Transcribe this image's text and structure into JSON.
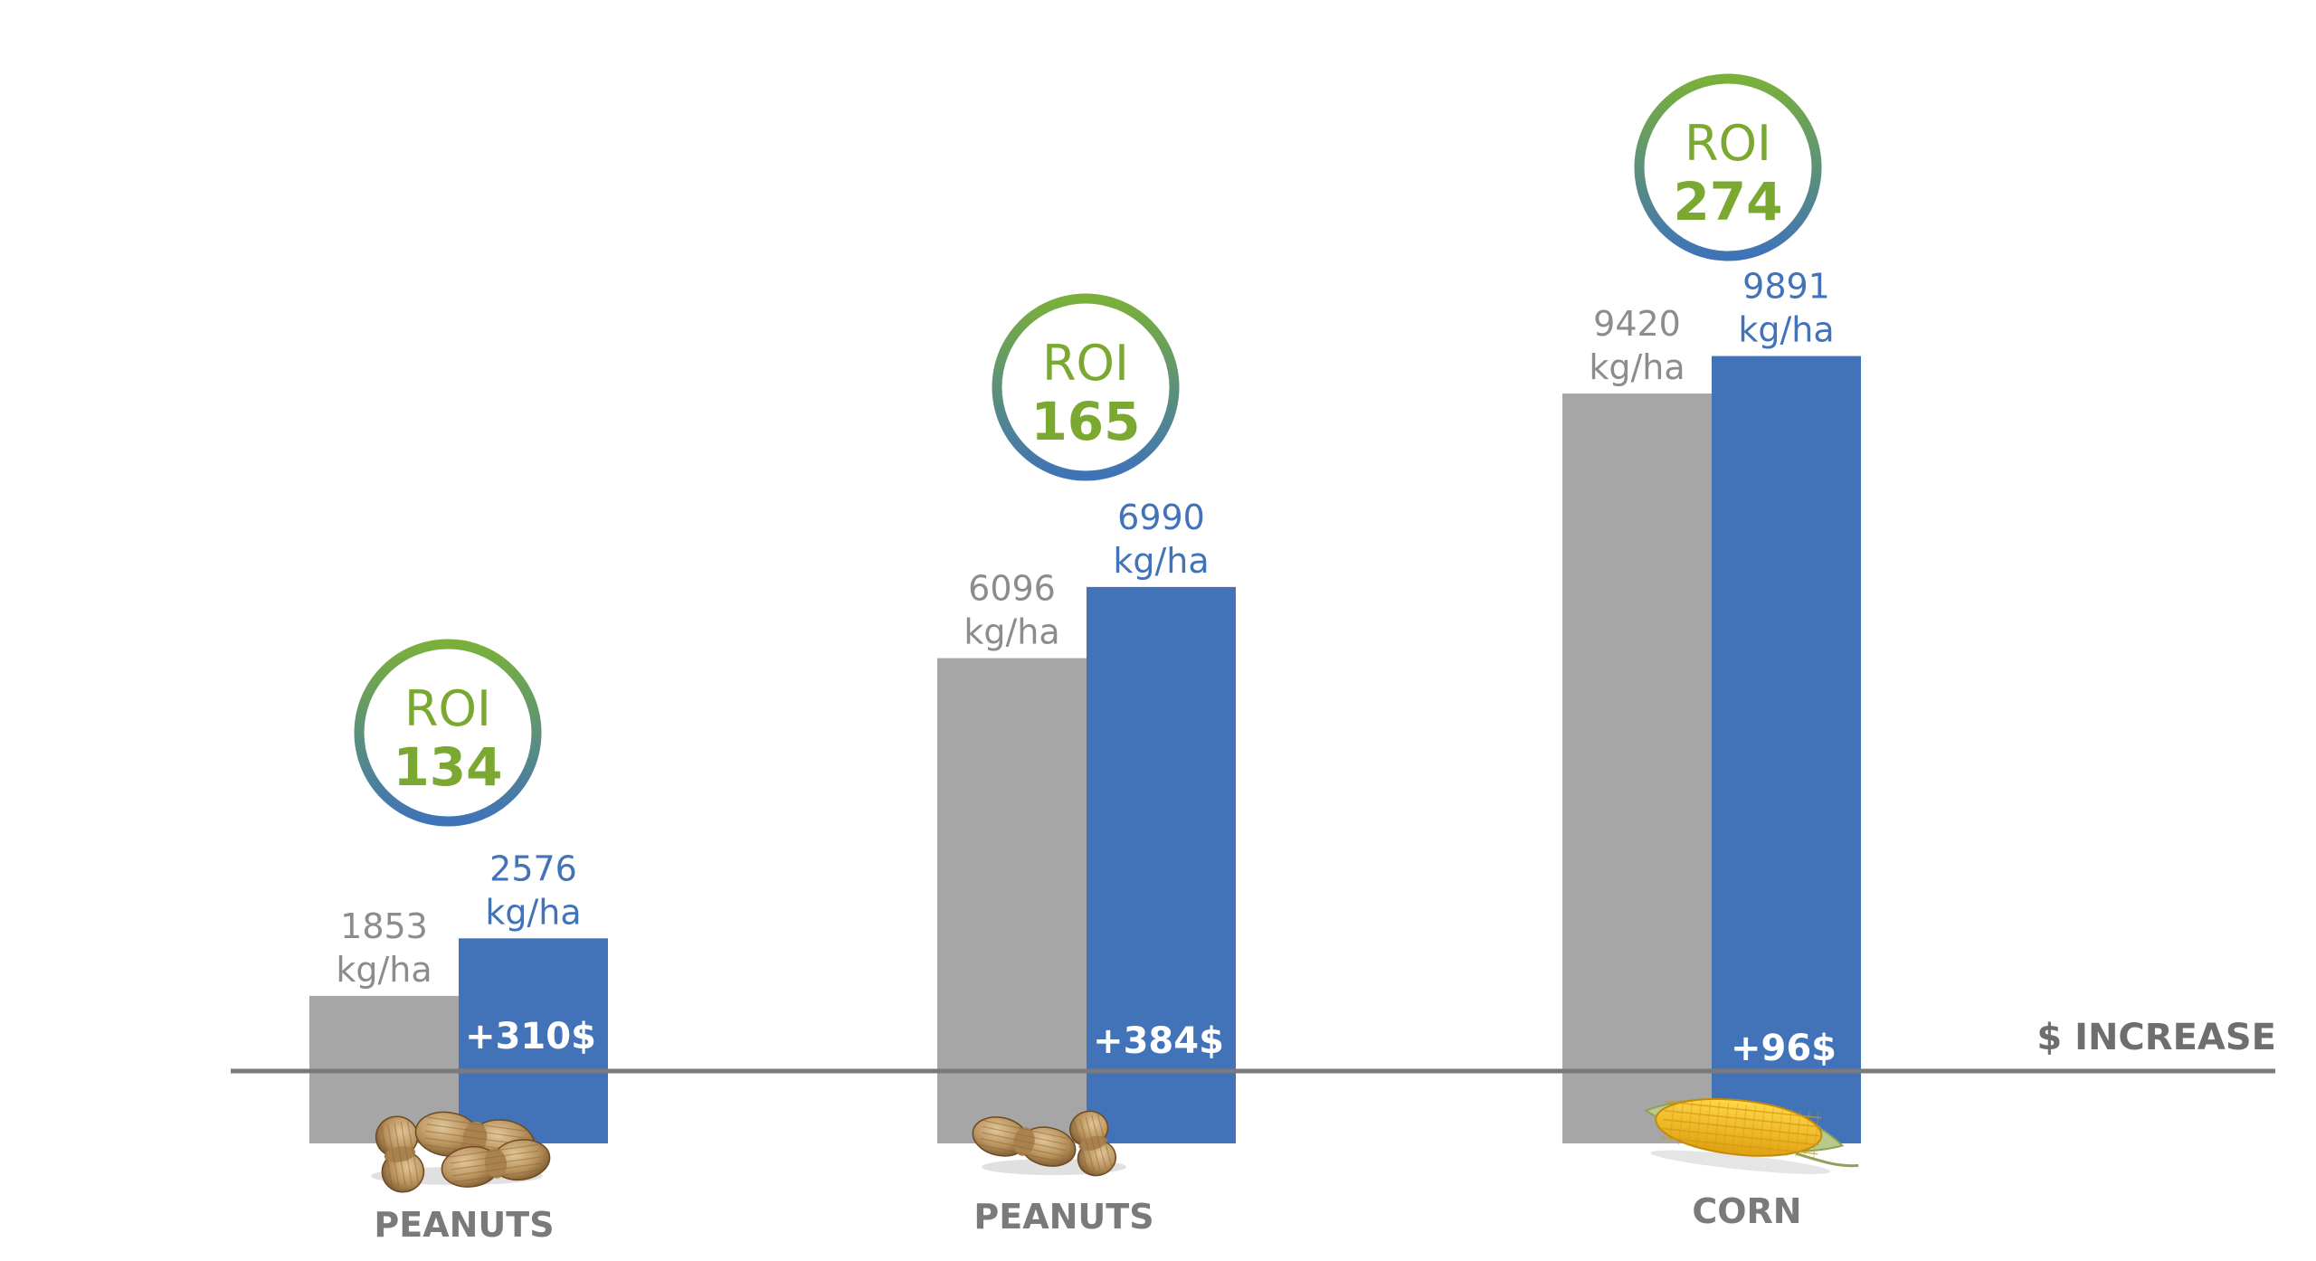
{
  "chart_data": {
    "type": "bar",
    "categories": [
      "PEANUTS",
      "PEANUTS",
      "CORN"
    ],
    "series": [
      {
        "values": [
          1853,
          6096,
          9420
        ]
      },
      {
        "values": [
          2576,
          6990,
          9891
        ]
      }
    ],
    "value_unit": "kg/ha",
    "roi": {
      "label": "ROI",
      "values": [
        134,
        165,
        274
      ]
    },
    "increase": {
      "axis_label": "$ INCREASE",
      "values": [
        "+310$",
        "+384$",
        "+96$"
      ]
    },
    "item_icons": [
      "peanuts-icon",
      "peanuts-icon",
      "corn-icon"
    ],
    "colors": {
      "grey_bar": "#a6a6a6",
      "blue_bar": "#4272b8",
      "grey_text": "#8c8c8c",
      "blue_text": "#4272b8",
      "roi_green": "#7aa830",
      "roi_ring_top": "#7ab03a",
      "roi_ring_bottom": "#3f73b8",
      "axis_line": "#7a7a7a",
      "category_text": "#7a7a7a"
    }
  }
}
